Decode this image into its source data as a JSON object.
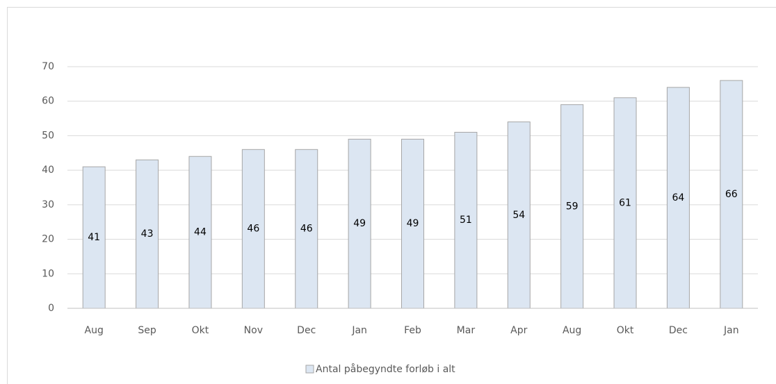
{
  "chart_data": {
    "type": "bar",
    "categories": [
      "Aug",
      "Sep",
      "Okt",
      "Nov",
      "Dec",
      "Jan",
      "Feb",
      "Mar",
      "Apr",
      "Aug",
      "Okt",
      "Dec",
      "Jan"
    ],
    "series": [
      {
        "name": "Antal påbegyndte forløb i alt",
        "color": "#dce6f2",
        "values": [
          41,
          43,
          44,
          46,
          46,
          49,
          49,
          51,
          54,
          59,
          61,
          64,
          66
        ]
      }
    ],
    "ylim": [
      0,
      70
    ],
    "yticks": [
      0,
      10,
      20,
      30,
      40,
      50,
      60,
      70
    ],
    "grid": true,
    "legend": "bottom"
  }
}
